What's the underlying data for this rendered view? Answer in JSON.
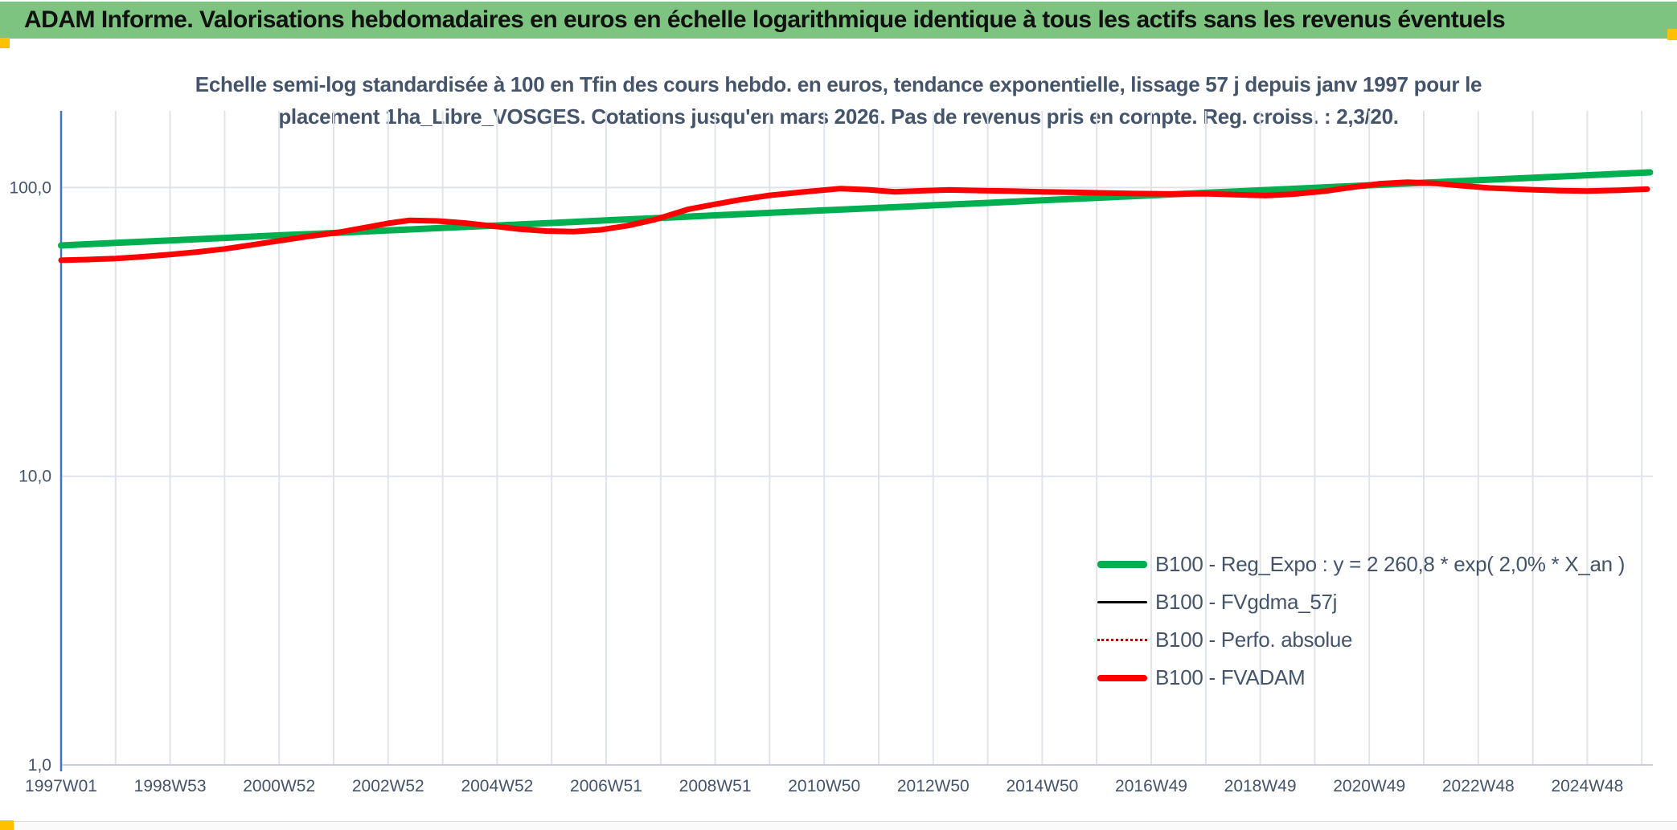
{
  "header": {
    "title": "ADAM Informe. Valorisations hebdomadaires en euros en échelle logarithmique identique à tous les actifs sans les revenus éventuels"
  },
  "colors": {
    "header_bg": "#7cc47f",
    "accent_amber": "#ffc000",
    "title_text": "#44546A",
    "gridline": "#e0e4ea",
    "axis_bottom": "#c9ced6",
    "y_axis_line": "#4472c4",
    "series_green": "#00b050",
    "series_black": "#000000",
    "series_dark_red": "#c00000",
    "series_red": "#ff0000"
  },
  "chart_data": {
    "type": "line",
    "title": "Echelle semi-log standardisée à 100 en Tfin des cours hebdo. en euros, tendance exponentielle, lissage 57 j depuis janv 1997 pour le placement 1ha_Libre_VOSGES. Cotations jusqu'en mars 2026. Pas de revenus pris en compte. Reg. croiss. : 2,3/20.",
    "title_line1": "Echelle semi-log standardisée à 100 en Tfin des cours hebdo. en euros, tendance exponentielle, lissage 57 j depuis janv 1997 pour le",
    "title_line2": "placement 1ha_Libre_VOSGES. Cotations jusqu'en mars 2026. Pas de revenus pris en compte. Reg. croiss. : 2,3/20.",
    "x_axis": {
      "tick_labels": [
        "1997W01",
        "1998W53",
        "2000W52",
        "2002W52",
        "2004W52",
        "2006W51",
        "2008W51",
        "2010W50",
        "2012W50",
        "2014W50",
        "2016W49",
        "2018W49",
        "2020W49",
        "2022W48",
        "2024W48"
      ],
      "tick_interval_years": 2,
      "gridline_interval_years": 1,
      "start_year": 1997.0,
      "end_year": 2026.2
    },
    "y_axis": {
      "scale": "log10",
      "tick_labels": [
        "100,0",
        "10,0",
        "1,0"
      ],
      "tick_values": [
        100,
        10,
        1
      ],
      "range": [
        1,
        185
      ],
      "grid": true
    },
    "legend_position": "inside-bottom-right",
    "series": [
      {
        "name": "B100 - Reg_Expo : y = 2 260,8 * exp( 2,0% *  X_an )",
        "color": "#00b050",
        "style": "solid",
        "stroke_width": 8,
        "regression": {
          "y0_at_1997": 63.0,
          "annual_rate_pct": 2.0
        },
        "points": [
          [
            1997,
            63.0
          ],
          [
            1998,
            64.3
          ],
          [
            1999,
            65.6
          ],
          [
            2000,
            66.9
          ],
          [
            2001,
            68.3
          ],
          [
            2002,
            69.6
          ],
          [
            2003,
            71.0
          ],
          [
            2004,
            72.5
          ],
          [
            2005,
            73.9
          ],
          [
            2006,
            75.4
          ],
          [
            2007,
            77.0
          ],
          [
            2008,
            78.5
          ],
          [
            2009,
            80.1
          ],
          [
            2010,
            81.7
          ],
          [
            2011,
            83.4
          ],
          [
            2012,
            85.0
          ],
          [
            2013,
            86.8
          ],
          [
            2014,
            88.5
          ],
          [
            2015,
            90.3
          ],
          [
            2016,
            92.1
          ],
          [
            2017,
            94.0
          ],
          [
            2018,
            95.9
          ],
          [
            2019,
            97.8
          ],
          [
            2020,
            99.8
          ],
          [
            2021,
            101.8
          ],
          [
            2022,
            103.9
          ],
          [
            2023,
            106.0
          ],
          [
            2024,
            108.1
          ],
          [
            2025,
            110.3
          ],
          [
            2026,
            112.5
          ],
          [
            2026.15,
            112.9
          ]
        ]
      },
      {
        "name": "B100 - FVgdma_57j",
        "color": "#000000",
        "style": "solid",
        "stroke_width": 2.5,
        "coincides_with": "B100 - FVADAM"
      },
      {
        "name": "B100 - Perfo. absolue",
        "color": "#c00000",
        "style": "dotted",
        "stroke_width": 2.5,
        "coincides_with": "B100 - FVADAM"
      },
      {
        "name": "B100 - FVADAM",
        "color": "#ff0000",
        "style": "solid",
        "stroke_width": 7,
        "points": [
          [
            1997.0,
            56.0
          ],
          [
            1997.5,
            56.3
          ],
          [
            1998.0,
            56.8
          ],
          [
            1998.5,
            57.6
          ],
          [
            1999.0,
            58.6
          ],
          [
            1999.5,
            59.8
          ],
          [
            2000.0,
            61.3
          ],
          [
            2000.5,
            63.3
          ],
          [
            2001.0,
            65.4
          ],
          [
            2001.5,
            67.6
          ],
          [
            2002.1,
            70.0
          ],
          [
            2002.6,
            72.8
          ],
          [
            2003.0,
            75.2
          ],
          [
            2003.4,
            77.0
          ],
          [
            2003.9,
            76.6
          ],
          [
            2004.4,
            75.4
          ],
          [
            2004.9,
            73.6
          ],
          [
            2005.4,
            71.8
          ],
          [
            2005.9,
            70.7
          ],
          [
            2006.4,
            70.4
          ],
          [
            2006.9,
            71.4
          ],
          [
            2007.4,
            73.8
          ],
          [
            2007.9,
            77.5
          ],
          [
            2008.5,
            84.0
          ],
          [
            2009.0,
            87.5
          ],
          [
            2009.5,
            91.0
          ],
          [
            2010.0,
            94.0
          ],
          [
            2010.6,
            96.5
          ],
          [
            2011.3,
            99.2
          ],
          [
            2011.8,
            98.3
          ],
          [
            2012.3,
            96.6
          ],
          [
            2012.8,
            97.5
          ],
          [
            2013.3,
            98.1
          ],
          [
            2013.9,
            97.6
          ],
          [
            2014.4,
            97.2
          ],
          [
            2015.0,
            96.6
          ],
          [
            2015.6,
            96.2
          ],
          [
            2016.2,
            95.7
          ],
          [
            2016.7,
            95.3
          ],
          [
            2017.4,
            95.0
          ],
          [
            2018.0,
            95.2
          ],
          [
            2018.6,
            94.4
          ],
          [
            2019.1,
            93.8
          ],
          [
            2019.6,
            94.9
          ],
          [
            2020.2,
            97.2
          ],
          [
            2020.7,
            100.3
          ],
          [
            2021.2,
            103.1
          ],
          [
            2021.7,
            104.4
          ],
          [
            2022.2,
            103.4
          ],
          [
            2022.7,
            101.4
          ],
          [
            2023.2,
            99.7
          ],
          [
            2023.9,
            98.4
          ],
          [
            2024.5,
            97.6
          ],
          [
            2025.0,
            97.2
          ],
          [
            2025.6,
            97.9
          ],
          [
            2026.1,
            98.7
          ]
        ]
      }
    ]
  }
}
